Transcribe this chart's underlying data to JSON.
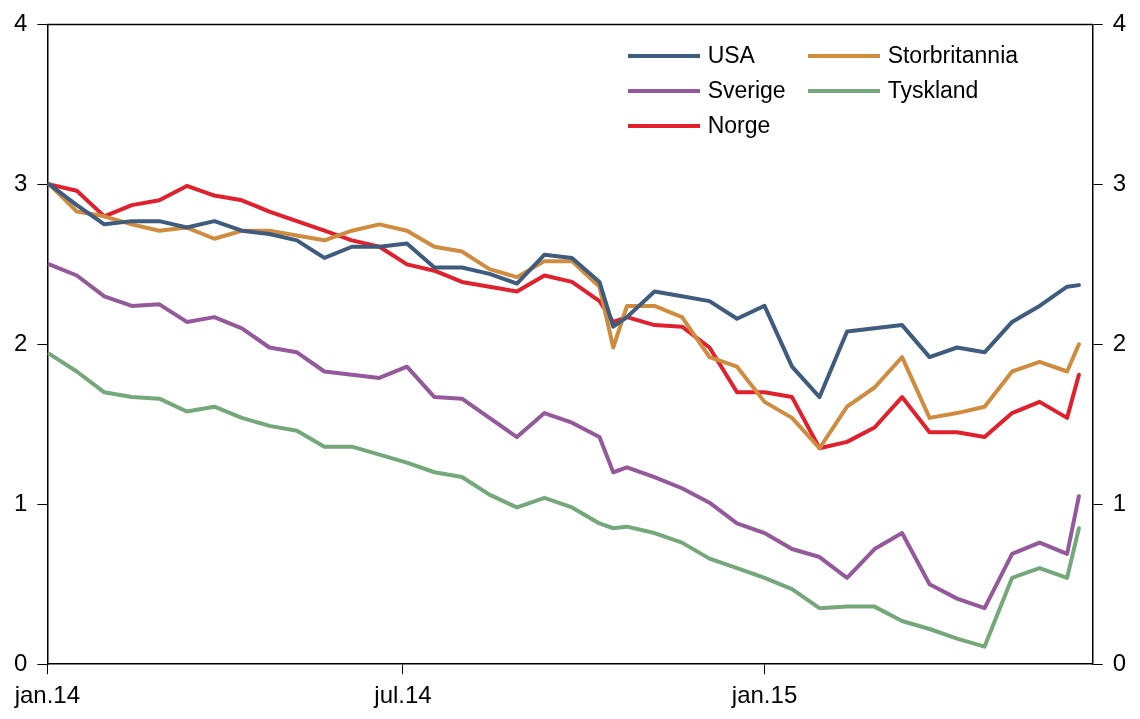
{
  "chart_data": {
    "type": "line",
    "x": [
      "2014-01-02",
      "2014-01-16",
      "2014-01-30",
      "2014-02-13",
      "2014-02-27",
      "2014-03-13",
      "2014-03-27",
      "2014-04-10",
      "2014-04-24",
      "2014-05-08",
      "2014-05-22",
      "2014-06-05",
      "2014-06-19",
      "2014-07-03",
      "2014-07-17",
      "2014-07-31",
      "2014-08-14",
      "2014-08-28",
      "2014-09-11",
      "2014-09-25",
      "2014-10-09",
      "2014-10-16",
      "2014-10-23",
      "2014-11-06",
      "2014-11-20",
      "2014-12-04",
      "2014-12-18",
      "2015-01-01",
      "2015-01-15",
      "2015-01-29",
      "2015-02-12",
      "2015-02-26",
      "2015-03-12",
      "2015-03-26",
      "2015-04-09",
      "2015-04-23",
      "2015-05-07",
      "2015-05-21",
      "2015-06-04",
      "2015-06-10"
    ],
    "series": [
      {
        "name": "USA",
        "color": "#3f5b7e",
        "values": [
          3.0,
          2.87,
          2.75,
          2.77,
          2.77,
          2.73,
          2.77,
          2.71,
          2.69,
          2.65,
          2.54,
          2.61,
          2.61,
          2.63,
          2.48,
          2.48,
          2.44,
          2.38,
          2.56,
          2.54,
          2.39,
          2.11,
          2.17,
          2.33,
          2.3,
          2.27,
          2.16,
          2.24,
          1.86,
          1.67,
          2.08,
          2.1,
          2.12,
          1.92,
          1.98,
          1.95,
          2.14,
          2.24,
          2.36,
          2.37
        ]
      },
      {
        "name": "Storbritannia",
        "color": "#d08c3e",
        "values": [
          3.0,
          2.83,
          2.8,
          2.75,
          2.71,
          2.73,
          2.66,
          2.71,
          2.71,
          2.68,
          2.65,
          2.71,
          2.75,
          2.71,
          2.61,
          2.58,
          2.47,
          2.42,
          2.52,
          2.52,
          2.36,
          1.98,
          2.24,
          2.24,
          2.17,
          1.92,
          1.86,
          1.64,
          1.54,
          1.35,
          1.61,
          1.73,
          1.92,
          1.54,
          1.57,
          1.61,
          1.83,
          1.89,
          1.83,
          2.0
        ]
      },
      {
        "name": "Sverige",
        "color": "#93599b",
        "values": [
          2.5,
          2.43,
          2.3,
          2.24,
          2.25,
          2.14,
          2.17,
          2.1,
          1.98,
          1.95,
          1.83,
          1.81,
          1.79,
          1.86,
          1.67,
          1.66,
          1.54,
          1.42,
          1.57,
          1.51,
          1.42,
          1.2,
          1.23,
          1.17,
          1.1,
          1.01,
          0.88,
          0.82,
          0.72,
          0.67,
          0.54,
          0.72,
          0.82,
          0.5,
          0.41,
          0.35,
          0.69,
          0.76,
          0.69,
          1.05
        ]
      },
      {
        "name": "Tyskland",
        "color": "#74a87a",
        "values": [
          1.94,
          1.83,
          1.7,
          1.67,
          1.66,
          1.58,
          1.61,
          1.54,
          1.49,
          1.46,
          1.36,
          1.36,
          1.31,
          1.26,
          1.2,
          1.17,
          1.06,
          0.98,
          1.04,
          0.98,
          0.88,
          0.85,
          0.86,
          0.82,
          0.76,
          0.66,
          0.6,
          0.54,
          0.47,
          0.35,
          0.36,
          0.36,
          0.27,
          0.22,
          0.16,
          0.11,
          0.54,
          0.6,
          0.54,
          0.85
        ]
      },
      {
        "name": "Norge",
        "color": "#e0202c",
        "values": [
          3.0,
          2.96,
          2.8,
          2.87,
          2.9,
          2.99,
          2.93,
          2.9,
          2.83,
          2.77,
          2.71,
          2.65,
          2.61,
          2.5,
          2.46,
          2.39,
          2.36,
          2.33,
          2.43,
          2.39,
          2.27,
          2.14,
          2.17,
          2.12,
          2.11,
          1.98,
          1.7,
          1.7,
          1.67,
          1.35,
          1.39,
          1.48,
          1.67,
          1.45,
          1.45,
          1.42,
          1.57,
          1.64,
          1.54,
          1.81
        ]
      }
    ],
    "xlim": [
      "2014-01-01",
      "2015-06-17"
    ],
    "xticks": [
      {
        "value": "2014-01-01",
        "label": "jan.14"
      },
      {
        "value": "2014-07-01",
        "label": "jul.14"
      },
      {
        "value": "2015-01-01",
        "label": "jan.15"
      }
    ],
    "ylim": [
      0,
      4
    ],
    "yticks": [
      0,
      1,
      2,
      3,
      4
    ],
    "y2lim": [
      0,
      4
    ],
    "y2ticks": [
      0,
      1,
      2,
      3,
      4
    ],
    "grid": false,
    "legend": "top right",
    "marker": "none",
    "line_style": "solid"
  }
}
